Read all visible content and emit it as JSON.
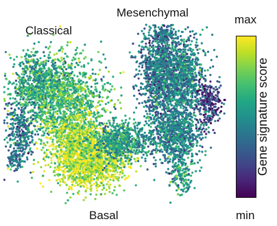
{
  "figure": {
    "cluster_labels": {
      "classical": "Classical",
      "mesenchymal": "Mesenchymal",
      "basal": "Basal"
    },
    "colorbar": {
      "title": "Gene signature score",
      "max_label": "max",
      "min_label": "min",
      "colormap": "viridis",
      "colors": [
        "#440154",
        "#482475",
        "#414487",
        "#355f8d",
        "#2a788e",
        "#21918c",
        "#22a884",
        "#44bf70",
        "#7ad151",
        "#bddf26",
        "#fde725"
      ]
    }
  },
  "chart_data": {
    "type": "scatter",
    "title": "",
    "xlabel": "",
    "ylabel": "",
    "grid": false,
    "axes_visible": false,
    "colormap": "viridis",
    "color_range": [
      "min",
      "max"
    ],
    "clusters": [
      {
        "name": "Classical",
        "mean_score": 0.7
      },
      {
        "name": "Mesenchymal",
        "mean_score": 0.45
      },
      {
        "name": "Basal",
        "mean_score": 0.85
      }
    ]
  }
}
